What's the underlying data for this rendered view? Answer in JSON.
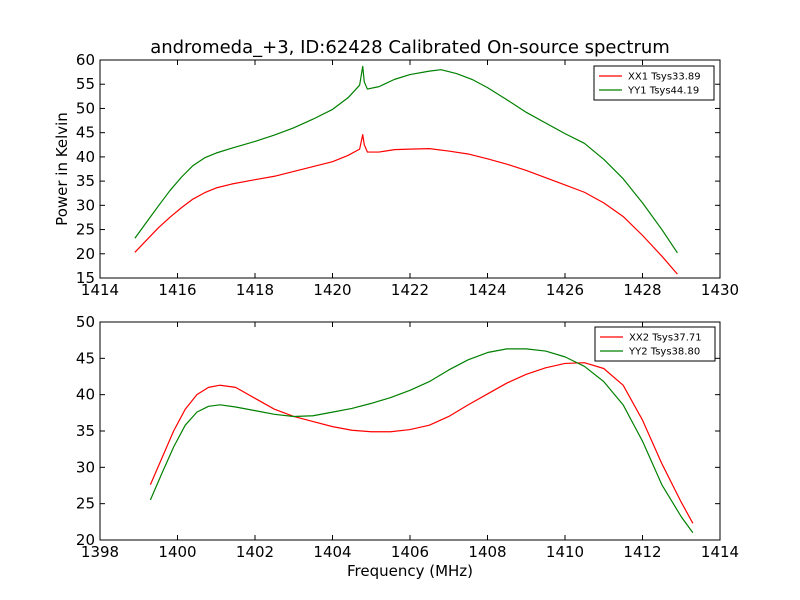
{
  "figure": {
    "title": "andromeda_+3, ID:62428 Calibrated On-source spectrum"
  },
  "colors": {
    "red": "#ff0000",
    "green": "#008000"
  },
  "chart_data": [
    {
      "type": "line",
      "title": "andromeda_+3, ID:62428 Calibrated On-source spectrum",
      "xlabel": "",
      "ylabel": "Power in Kelvin",
      "xlim": [
        1414,
        1430
      ],
      "ylim": [
        15,
        60
      ],
      "xticks": [
        1414,
        1416,
        1418,
        1420,
        1422,
        1424,
        1426,
        1428,
        1430
      ],
      "yticks": [
        15,
        20,
        25,
        30,
        35,
        40,
        45,
        50,
        55,
        60
      ],
      "grid": false,
      "legend": "top-right",
      "series": [
        {
          "name": "XX1 Tsys33.89",
          "color": "#ff0000",
          "x": [
            1414.9,
            1415.2,
            1415.5,
            1415.8,
            1416.1,
            1416.4,
            1416.7,
            1417.0,
            1417.4,
            1418.0,
            1418.5,
            1419.0,
            1419.5,
            1420.0,
            1420.4,
            1420.7,
            1420.78,
            1420.82,
            1420.9,
            1421.2,
            1421.6,
            1422.0,
            1422.5,
            1423.0,
            1423.5,
            1424.0,
            1424.5,
            1425.0,
            1425.5,
            1426.0,
            1426.5,
            1427.0,
            1427.5,
            1428.0,
            1428.5,
            1428.9
          ],
          "y": [
            20.3,
            22.8,
            25.3,
            27.5,
            29.5,
            31.3,
            32.6,
            33.6,
            34.4,
            35.3,
            36.0,
            37.0,
            38.0,
            39.0,
            40.3,
            41.6,
            44.6,
            42.5,
            41.0,
            41.0,
            41.5,
            41.6,
            41.7,
            41.2,
            40.6,
            39.6,
            38.5,
            37.2,
            35.7,
            34.2,
            32.7,
            30.5,
            27.7,
            23.8,
            19.5,
            15.8
          ]
        },
        {
          "name": "YY1 Tsys44.19",
          "color": "#008000",
          "x": [
            1414.9,
            1415.2,
            1415.5,
            1415.8,
            1416.1,
            1416.4,
            1416.7,
            1417.0,
            1417.4,
            1418.0,
            1418.5,
            1419.0,
            1419.5,
            1420.0,
            1420.4,
            1420.7,
            1420.78,
            1420.82,
            1420.9,
            1421.2,
            1421.6,
            1422.0,
            1422.5,
            1422.8,
            1423.2,
            1423.6,
            1424.0,
            1424.5,
            1425.0,
            1425.5,
            1426.0,
            1426.5,
            1427.0,
            1427.5,
            1428.0,
            1428.5,
            1428.9
          ],
          "y": [
            23.2,
            26.5,
            29.8,
            33.0,
            35.8,
            38.2,
            39.8,
            40.8,
            41.8,
            43.2,
            44.5,
            46.0,
            47.8,
            49.8,
            52.2,
            54.8,
            58.7,
            55.5,
            54.0,
            54.5,
            56.0,
            57.0,
            57.7,
            58.0,
            57.2,
            56.0,
            54.3,
            51.8,
            49.2,
            47.0,
            44.8,
            42.8,
            39.5,
            35.5,
            30.5,
            25.0,
            20.2
          ]
        }
      ]
    },
    {
      "type": "line",
      "title": "",
      "xlabel": "Frequency (MHz)",
      "ylabel": "",
      "xlim": [
        1398,
        1414
      ],
      "ylim": [
        20,
        50
      ],
      "xticks": [
        1398,
        1400,
        1402,
        1404,
        1406,
        1408,
        1410,
        1412,
        1414
      ],
      "yticks": [
        20,
        25,
        30,
        35,
        40,
        45,
        50
      ],
      "grid": false,
      "legend": "top-right",
      "series": [
        {
          "name": "XX2 Tsys37.71",
          "color": "#ff0000",
          "x": [
            1399.3,
            1399.6,
            1399.9,
            1400.2,
            1400.5,
            1400.8,
            1401.1,
            1401.5,
            1402.0,
            1402.5,
            1403.0,
            1403.5,
            1404.0,
            1404.5,
            1405.0,
            1405.5,
            1406.0,
            1406.5,
            1407.0,
            1407.5,
            1408.0,
            1408.5,
            1409.0,
            1409.5,
            1410.0,
            1410.5,
            1411.0,
            1411.5,
            1412.0,
            1412.5,
            1413.0,
            1413.3
          ],
          "y": [
            27.6,
            31.3,
            35.0,
            38.0,
            40.0,
            41.0,
            41.3,
            41.0,
            39.5,
            38.0,
            37.0,
            36.3,
            35.6,
            35.1,
            34.9,
            34.9,
            35.2,
            35.8,
            37.0,
            38.6,
            40.1,
            41.6,
            42.8,
            43.7,
            44.3,
            44.4,
            43.6,
            41.3,
            36.5,
            30.5,
            25.2,
            22.3
          ]
        },
        {
          "name": "YY2 Tsys38.80",
          "color": "#008000",
          "x": [
            1399.3,
            1399.6,
            1399.9,
            1400.2,
            1400.5,
            1400.8,
            1401.1,
            1401.5,
            1402.0,
            1402.5,
            1403.0,
            1403.5,
            1404.0,
            1404.5,
            1405.0,
            1405.5,
            1406.0,
            1406.5,
            1407.0,
            1407.5,
            1408.0,
            1408.5,
            1409.0,
            1409.5,
            1410.0,
            1410.5,
            1411.0,
            1411.5,
            1412.0,
            1412.5,
            1413.0,
            1413.3
          ],
          "y": [
            25.5,
            29.2,
            32.8,
            35.8,
            37.6,
            38.4,
            38.6,
            38.3,
            37.8,
            37.3,
            37.0,
            37.1,
            37.6,
            38.1,
            38.8,
            39.6,
            40.6,
            41.8,
            43.4,
            44.8,
            45.8,
            46.3,
            46.3,
            46.0,
            45.2,
            43.9,
            41.8,
            38.6,
            33.6,
            27.6,
            23.2,
            21.0
          ]
        }
      ]
    }
  ]
}
